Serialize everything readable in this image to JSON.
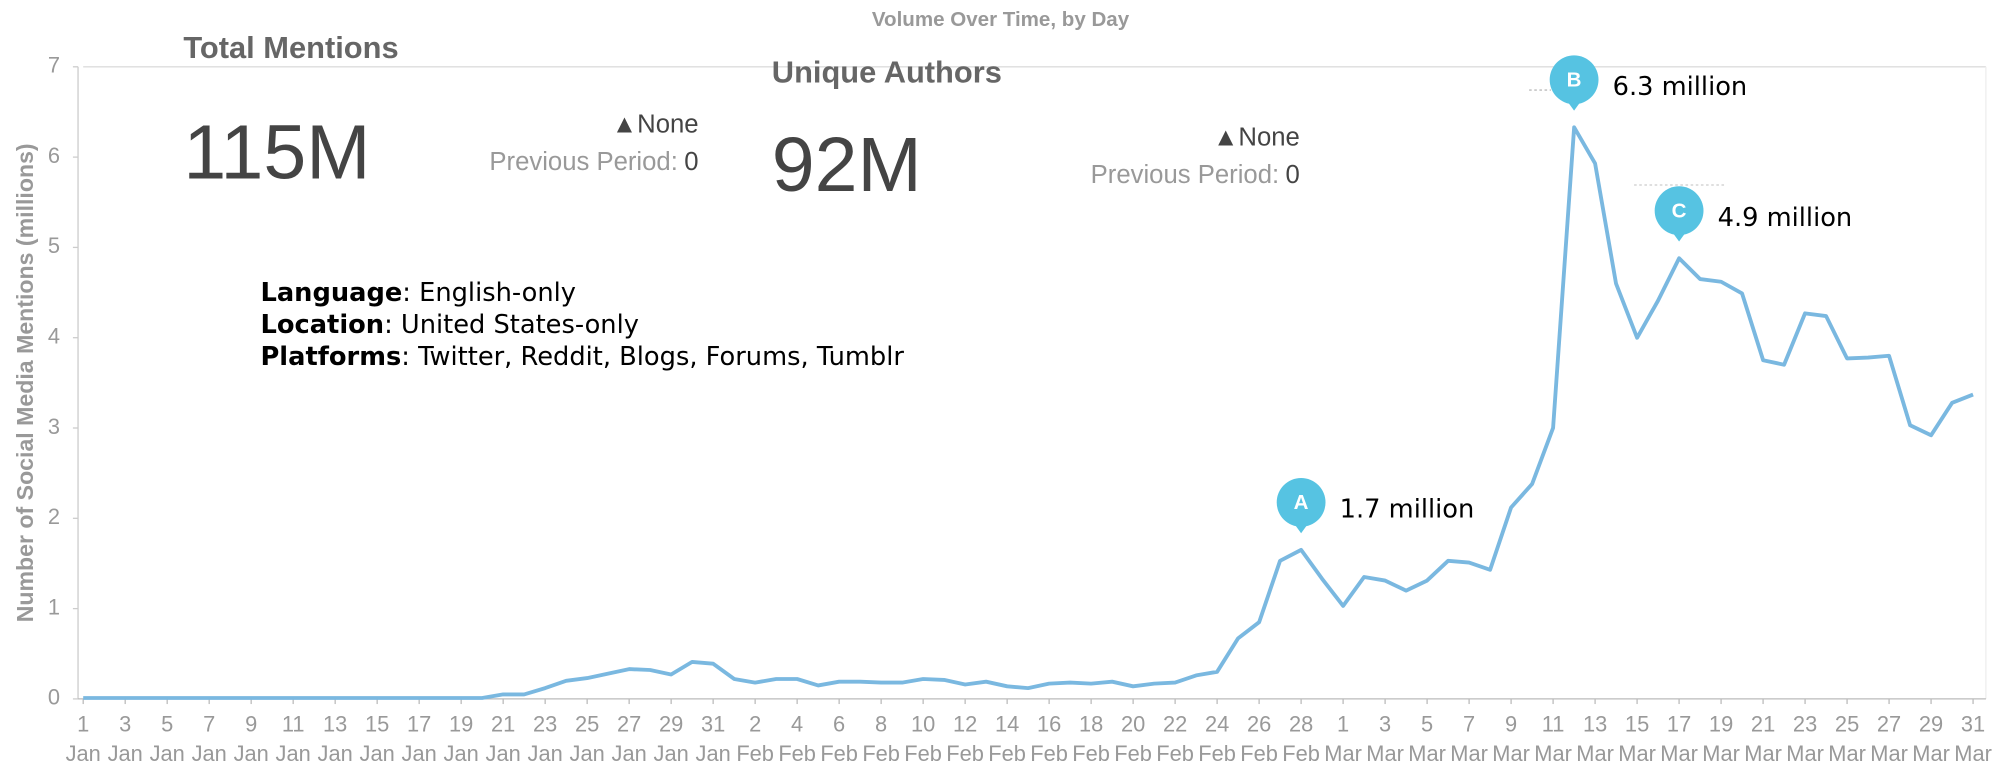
{
  "chart_data": {
    "type": "line",
    "title": "Volume Over Time, by Day",
    "y_label": "Number of Social Media Mentions (millions)",
    "kpis": [
      {
        "title": "Total Mentions",
        "value": "115M",
        "change": "▲None",
        "previous_label": "Previous Period:",
        "previous_value": 0
      },
      {
        "title": "Unique Authors",
        "value": "92M",
        "change": "▲None",
        "previous_label": "Previous Period:",
        "previous_value": 0
      }
    ],
    "notes": [
      {
        "key": "Language",
        "text": ": English-only"
      },
      {
        "key": "Location",
        "text": ": United States-only"
      },
      {
        "key": "Platforms",
        "text": ": Twitter, Reddit, Blogs, Forums, Tumblr"
      }
    ],
    "categories": [
      [
        "1",
        "Jan"
      ],
      null,
      [
        "3",
        "Jan"
      ],
      null,
      [
        "5",
        "Jan"
      ],
      null,
      [
        "7",
        "Jan"
      ],
      null,
      [
        "9",
        "Jan"
      ],
      null,
      [
        "11",
        "Jan"
      ],
      null,
      [
        "13",
        "Jan"
      ],
      null,
      [
        "15",
        "Jan"
      ],
      null,
      [
        "17",
        "Jan"
      ],
      null,
      [
        "19",
        "Jan"
      ],
      null,
      [
        "21",
        "Jan"
      ],
      null,
      [
        "23",
        "Jan"
      ],
      null,
      [
        "25",
        "Jan"
      ],
      null,
      [
        "27",
        "Jan"
      ],
      null,
      [
        "29",
        "Jan"
      ],
      null,
      [
        "31",
        "Jan"
      ],
      null,
      [
        "2",
        "Feb"
      ],
      null,
      [
        "4",
        "Feb"
      ],
      null,
      [
        "6",
        "Feb"
      ],
      null,
      [
        "8",
        "Feb"
      ],
      null,
      [
        "10",
        "Feb"
      ],
      null,
      [
        "12",
        "Feb"
      ],
      null,
      [
        "14",
        "Feb"
      ],
      null,
      [
        "16",
        "Feb"
      ],
      null,
      [
        "18",
        "Feb"
      ],
      null,
      [
        "20",
        "Feb"
      ],
      null,
      [
        "22",
        "Feb"
      ],
      null,
      [
        "24",
        "Feb"
      ],
      null,
      [
        "26",
        "Feb"
      ],
      null,
      [
        "28",
        "Feb"
      ],
      null,
      [
        "1",
        "Mar"
      ],
      null,
      [
        "3",
        "Mar"
      ],
      null,
      [
        "5",
        "Mar"
      ],
      null,
      [
        "7",
        "Mar"
      ],
      null,
      [
        "9",
        "Mar"
      ],
      null,
      [
        "11",
        "Mar"
      ],
      null,
      [
        "13",
        "Mar"
      ],
      null,
      [
        "15",
        "Mar"
      ],
      null,
      [
        "17",
        "Mar"
      ],
      null,
      [
        "19",
        "Mar"
      ],
      null,
      [
        "21",
        "Mar"
      ],
      null,
      [
        "23",
        "Mar"
      ],
      null,
      [
        "25",
        "Mar"
      ],
      null,
      [
        "27",
        "Mar"
      ],
      null,
      [
        "29",
        "Mar"
      ],
      null,
      [
        "31",
        "Mar"
      ]
    ],
    "series": [
      {
        "color": "#7ab8e0",
        "values": [
          0.01,
          0.01,
          0.01,
          0.01,
          0.01,
          0.01,
          0.01,
          0.01,
          0.01,
          0.01,
          0.01,
          0.01,
          0.01,
          0.01,
          0.01,
          0.01,
          0.01,
          0.01,
          0.01,
          0.01,
          0.05,
          0.05,
          0.12,
          0.2,
          0.23,
          0.28,
          0.33,
          0.32,
          0.27,
          0.41,
          0.39,
          0.22,
          0.18,
          0.22,
          0.22,
          0.15,
          0.19,
          0.19,
          0.18,
          0.18,
          0.22,
          0.21,
          0.16,
          0.19,
          0.14,
          0.12,
          0.17,
          0.18,
          0.17,
          0.19,
          0.14,
          0.17,
          0.18,
          0.26,
          0.3,
          0.67,
          0.85,
          1.53,
          1.65,
          1.33,
          1.03,
          1.35,
          1.31,
          1.2,
          1.31,
          1.53,
          1.51,
          1.43,
          2.12,
          2.38,
          3.0,
          6.33,
          5.93,
          4.6,
          4.0,
          4.41,
          4.88,
          4.65,
          4.62,
          4.49,
          3.75,
          3.7,
          4.27,
          4.24,
          3.77,
          3.78,
          3.8,
          3.03,
          2.92,
          3.28,
          3.37
        ]
      }
    ],
    "annotations": [
      {
        "marker": "A",
        "label": "1.7 million",
        "point": 58
      },
      {
        "marker": "B",
        "label": "6.3 million",
        "point": 71
      },
      {
        "marker": "C",
        "label": "4.9 million",
        "point": 76
      }
    ],
    "marker_color": "#56c3e2",
    "ylim": [
      0,
      7
    ],
    "yticks": [
      0,
      1,
      2,
      3,
      4,
      5,
      6,
      7
    ]
  }
}
